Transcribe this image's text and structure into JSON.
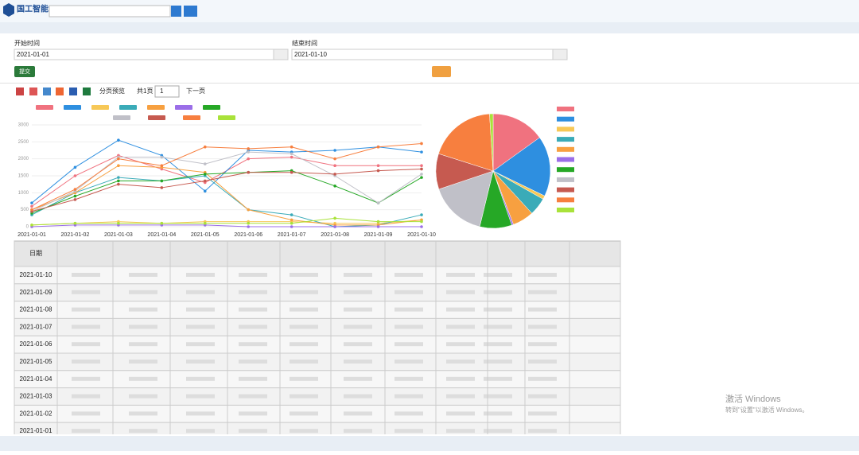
{
  "header": {
    "brand": "国工智能"
  },
  "form": {
    "start_label": "开始时间",
    "start_value": "2021-01-01",
    "end_label": "结束时间",
    "end_value": "2021-01-10",
    "submit": "提交"
  },
  "toolbar": {
    "preview": "分页预览",
    "pages": "共1页",
    "page": "1",
    "next": "下一页"
  },
  "chart_data": [
    {
      "type": "line",
      "categories": [
        "2021-01-01",
        "2021-01-02",
        "2021-01-03",
        "2021-01-04",
        "2021-01-05",
        "2021-01-06",
        "2021-01-07",
        "2021-01-08",
        "2021-01-09",
        "2021-01-10"
      ],
      "ylim": [
        0,
        3000
      ],
      "yticks": [
        0,
        500,
        1000,
        1500,
        2000,
        2500,
        3000
      ],
      "grid": true,
      "series": [
        {
          "color": "#f0727f",
          "values": [
            600,
            1500,
            2100,
            1700,
            1300,
            2000,
            2050,
            1800,
            1800,
            1800
          ]
        },
        {
          "color": "#2e8fe0",
          "values": [
            700,
            1750,
            2550,
            2100,
            1050,
            2250,
            2200,
            2250,
            2350,
            2200
          ]
        },
        {
          "color": "#f7c857",
          "values": [
            50,
            100,
            150,
            100,
            150,
            150,
            150,
            100,
            100,
            200
          ]
        },
        {
          "color": "#3aabb8",
          "values": [
            350,
            1000,
            1450,
            1350,
            1500,
            500,
            350,
            0,
            50,
            350
          ]
        },
        {
          "color": "#f7a040",
          "values": [
            500,
            1000,
            1800,
            1750,
            1600,
            500,
            200,
            50,
            50,
            200
          ]
        },
        {
          "color": "#9b6ee8",
          "values": [
            0,
            50,
            50,
            50,
            50,
            0,
            0,
            0,
            0,
            0
          ]
        },
        {
          "color": "#26a826",
          "values": [
            400,
            900,
            1350,
            1350,
            1550,
            1600,
            1650,
            1200,
            700,
            1450
          ]
        },
        {
          "color": "#c0c0c8",
          "values": [
            450,
            1050,
            2050,
            2050,
            1850,
            2200,
            2150,
            1500,
            700,
            1550
          ]
        },
        {
          "color": "#c65a50",
          "values": [
            450,
            800,
            1250,
            1150,
            1350,
            1600,
            1600,
            1550,
            1650,
            1700
          ]
        },
        {
          "color": "#f77f3f",
          "values": [
            500,
            1100,
            2000,
            1800,
            2350,
            2300,
            2350,
            2000,
            2350,
            2450
          ]
        },
        {
          "color": "#a9e23a",
          "values": [
            50,
            100,
            100,
            100,
            100,
            100,
            100,
            250,
            150,
            150
          ]
        }
      ]
    },
    {
      "type": "pie",
      "values": [
        15,
        17,
        1,
        5,
        6,
        0.5,
        9,
        16,
        10,
        19,
        1
      ],
      "colors": [
        "#f0727f",
        "#2e8fe0",
        "#f7c857",
        "#3aabb8",
        "#f7a040",
        "#9b6ee8",
        "#26a826",
        "#c0c0c8",
        "#c65a50",
        "#f77f3f",
        "#a9e23a"
      ]
    }
  ],
  "table": {
    "date_header": "日期",
    "dates": [
      "2021-01-10",
      "2021-01-09",
      "2021-01-08",
      "2021-01-07",
      "2021-01-06",
      "2021-01-05",
      "2021-01-04",
      "2021-01-03",
      "2021-01-02",
      "2021-01-01"
    ]
  },
  "watermark": {
    "title": "激活 Windows",
    "subtitle": "转到\"设置\"以激活 Windows。"
  }
}
